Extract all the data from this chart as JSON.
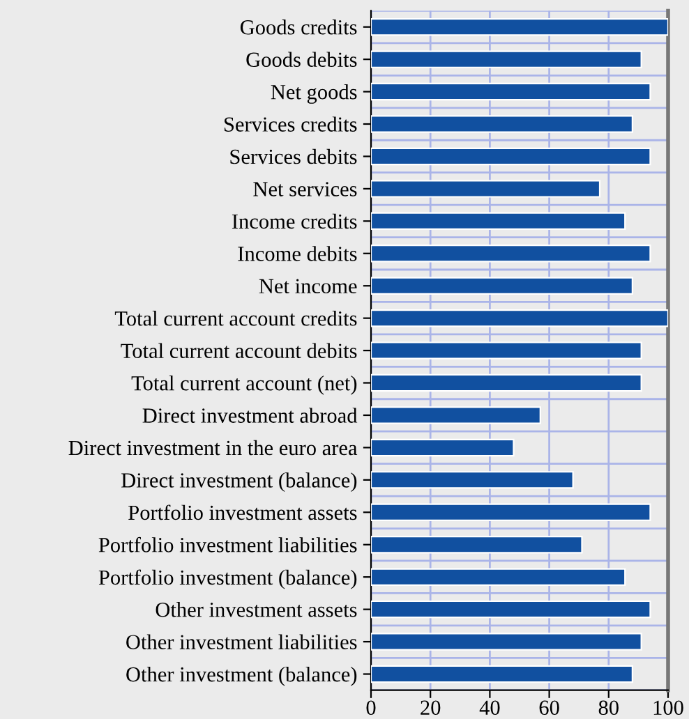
{
  "chart_data": {
    "type": "bar",
    "orientation": "horizontal",
    "categories": [
      "Goods credits",
      "Goods debits",
      "Net goods",
      "Services credits",
      "Services debits",
      "Net services",
      "Income credits",
      "Income debits",
      "Net income",
      "Total current account credits",
      "Total current account debits",
      "Total current account (net)",
      "Direct investment abroad",
      "Direct investment in the euro area",
      "Direct investment (balance)",
      "Portfolio investment assets",
      "Portfolio investment liabilities",
      "Portfolio investment (balance)",
      "Other investment assets",
      "Other investment liabilities",
      "Other investment (balance)"
    ],
    "values": [
      100,
      91,
      94,
      88,
      94,
      77,
      85.5,
      94,
      88,
      100,
      91,
      91,
      57,
      48,
      68,
      94,
      71,
      85.5,
      94,
      91,
      88
    ],
    "color": "#1150a0",
    "xlim": [
      0,
      100
    ],
    "xticks": [
      0,
      20,
      40,
      60,
      80,
      100
    ],
    "grid": true
  }
}
